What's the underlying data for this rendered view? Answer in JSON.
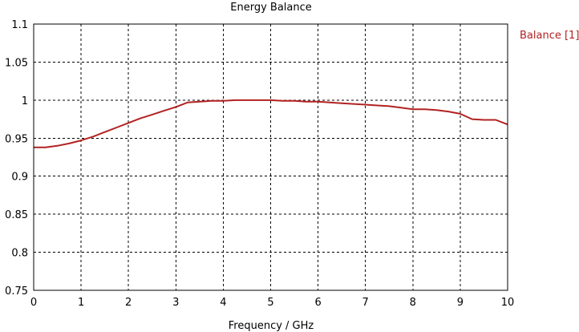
{
  "chart_data": {
    "type": "line",
    "title": "Energy Balance",
    "xlabel": "Frequency / GHz",
    "ylabel": "",
    "xlim": [
      0,
      10
    ],
    "ylim": [
      0.75,
      1.1
    ],
    "x_ticks": [
      0,
      1,
      2,
      3,
      4,
      5,
      6,
      7,
      8,
      9,
      10
    ],
    "y_ticks": [
      0.75,
      0.8,
      0.85,
      0.9,
      0.95,
      1,
      1.05,
      1.1
    ],
    "x_tick_labels": [
      "0",
      "1",
      "2",
      "3",
      "4",
      "5",
      "6",
      "7",
      "8",
      "9",
      "10"
    ],
    "y_tick_labels": [
      "0.75",
      "0.8",
      "0.85",
      "0.9",
      "0.95",
      "1",
      "1.05",
      "1.1"
    ],
    "grid": true,
    "legend_position": "top-right",
    "series": [
      {
        "name": "Balance [1]",
        "color": "#b22222",
        "x": [
          0,
          0.25,
          0.5,
          0.75,
          1,
          1.25,
          1.5,
          1.75,
          2,
          2.25,
          2.5,
          2.75,
          3,
          3.25,
          3.5,
          3.75,
          4,
          4.25,
          4.5,
          4.75,
          5,
          5.25,
          5.5,
          5.75,
          6,
          6.25,
          6.5,
          6.75,
          7,
          7.25,
          7.5,
          7.75,
          8,
          8.25,
          8.5,
          8.75,
          9,
          9.25,
          9.5,
          9.75,
          10
        ],
        "y": [
          0.938,
          0.938,
          0.94,
          0.943,
          0.947,
          0.952,
          0.958,
          0.964,
          0.97,
          0.976,
          0.981,
          0.986,
          0.991,
          0.997,
          0.998,
          0.999,
          0.999,
          1.0,
          1.0,
          1.0,
          1.0,
          0.999,
          0.999,
          0.998,
          0.998,
          0.997,
          0.996,
          0.995,
          0.994,
          0.993,
          0.992,
          0.99,
          0.988,
          0.988,
          0.987,
          0.985,
          0.982,
          0.975,
          0.974,
          0.974,
          0.968
        ]
      }
    ]
  }
}
